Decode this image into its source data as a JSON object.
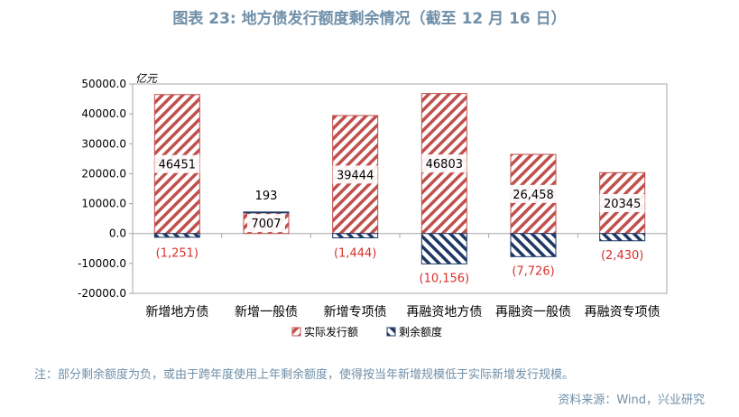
{
  "title": "图表 23: 地方债发行额度剩余情况（截至 12 月 16 日）",
  "note": "注：部分剩余额度为负，或由于跨年度使用上年剩余额度，使得按当年新增规模低于实际新增发行规模。",
  "source": "资料来源：Wind，兴业研究",
  "colors": {
    "actual": "#c0504d",
    "remaining": "#1f3864",
    "negative_label": "#d9302c"
  },
  "chart_data": {
    "type": "bar",
    "stacked": true,
    "unit_label": "亿元",
    "categories": [
      "新增地方债",
      "新增一般债",
      "新增专项债",
      "再融资地方债",
      "再融资一般债",
      "再融资专项债"
    ],
    "series": [
      {
        "name": "实际发行额",
        "values": [
          46451,
          7007,
          39444,
          46803,
          26458,
          20345
        ],
        "labels": [
          "46451",
          "7007",
          "39444",
          "46803",
          "26,458",
          "20345"
        ]
      },
      {
        "name": "剩余额度",
        "values": [
          -1251,
          193,
          -1444,
          -10156,
          -7726,
          -2430
        ],
        "labels": [
          "(1,251)",
          "193",
          "(1,444)",
          "(10,156)",
          "(7,726)",
          "(2,430)"
        ]
      }
    ],
    "ylim": [
      -20000,
      50000
    ],
    "yticks": [
      -20000,
      -10000,
      0,
      10000,
      20000,
      30000,
      40000,
      50000
    ],
    "ytick_labels": [
      "-20000.0",
      "-10000.0",
      "0.0",
      "10000.0",
      "20000.0",
      "30000.0",
      "40000.0",
      "50000.0"
    ],
    "grid": false,
    "legend_position": "bottom"
  }
}
